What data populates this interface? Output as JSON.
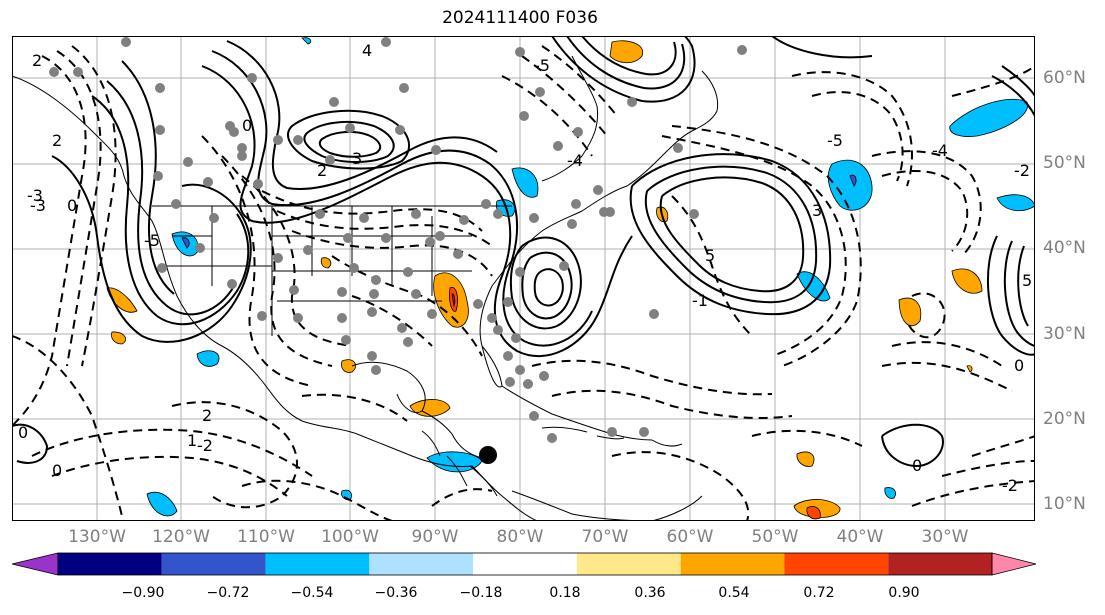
{
  "title": "2024111400 F036",
  "lat_labels": [
    "60°N",
    "50°N",
    "40°N",
    "30°N",
    "20°N",
    "10°N"
  ],
  "lon_labels": [
    "130°W",
    "120°W",
    "110°W",
    "100°W",
    "90°W",
    "80°W",
    "70°W",
    "60°W",
    "50°W",
    "40°W",
    "30°W"
  ],
  "colorbar": {
    "colors": [
      "#9933cc",
      "#000080",
      "#3355cc",
      "#00bfff",
      "#aee0ff",
      "#ffffff",
      "#ffe88a",
      "#ffa500",
      "#ff4500",
      "#b22222",
      "#ff88aa"
    ],
    "ticks": [
      "−0.90",
      "−0.72",
      "−0.54",
      "−0.36",
      "−0.18",
      "0.18",
      "0.36",
      "0.54",
      "0.72",
      "0.90"
    ]
  },
  "contour_labels": [
    "0",
    "0",
    "0",
    "2",
    "-2",
    "3",
    "4",
    "-5",
    "5",
    "-5",
    "-3",
    "3",
    "2",
    "0",
    "-2",
    "1",
    "5",
    "-4",
    "-2",
    "0",
    "2",
    "-5",
    "-4",
    "0",
    "-3",
    "-1",
    "2"
  ]
}
